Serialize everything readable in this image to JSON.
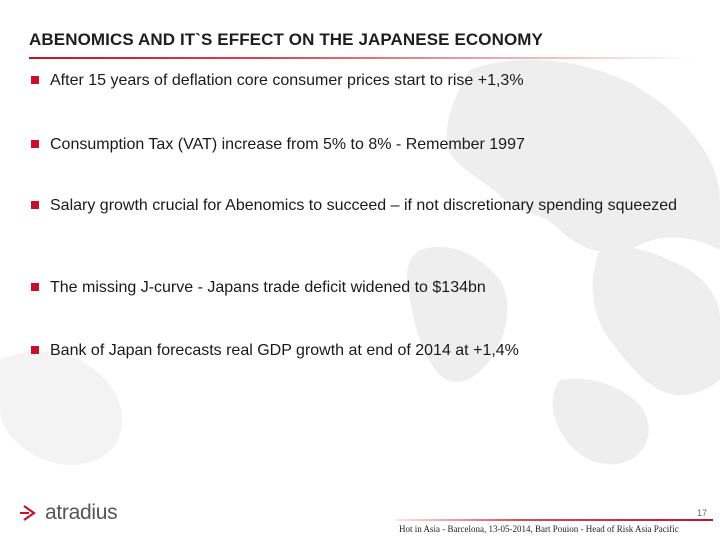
{
  "slide": {
    "title": "ABENOMICS AND IT`S EFFECT ON THE JAPANESE ECONOMY",
    "bullets": [
      "After 15 years of deflation core consumer prices start to rise +1,3%",
      "Consumption Tax (VAT) increase from 5% to 8% - Remember 1997",
      "Salary growth crucial for Abenomics to succeed – if not discretionary spending squeezed",
      "The missing J-curve - Japans trade deficit widened to $134bn",
      "Bank of Japan forecasts real GDP growth at end of 2014 at +1,4%"
    ]
  },
  "footer": {
    "logo_text": "atradius",
    "caption": "Hot in Asia - Barcelona, 13-05-2014, Bart Pouion - Head of Risk Asia Pacific",
    "page_number": "17"
  },
  "colors": {
    "accent": "#c8102e",
    "text": "#1a1a1a",
    "logo_gray": "#555555"
  },
  "icons": {
    "bullet": "red-square-bullet-icon",
    "logo_mark": "atradius-chevron-logo-icon",
    "background": "world-map-watermark"
  }
}
